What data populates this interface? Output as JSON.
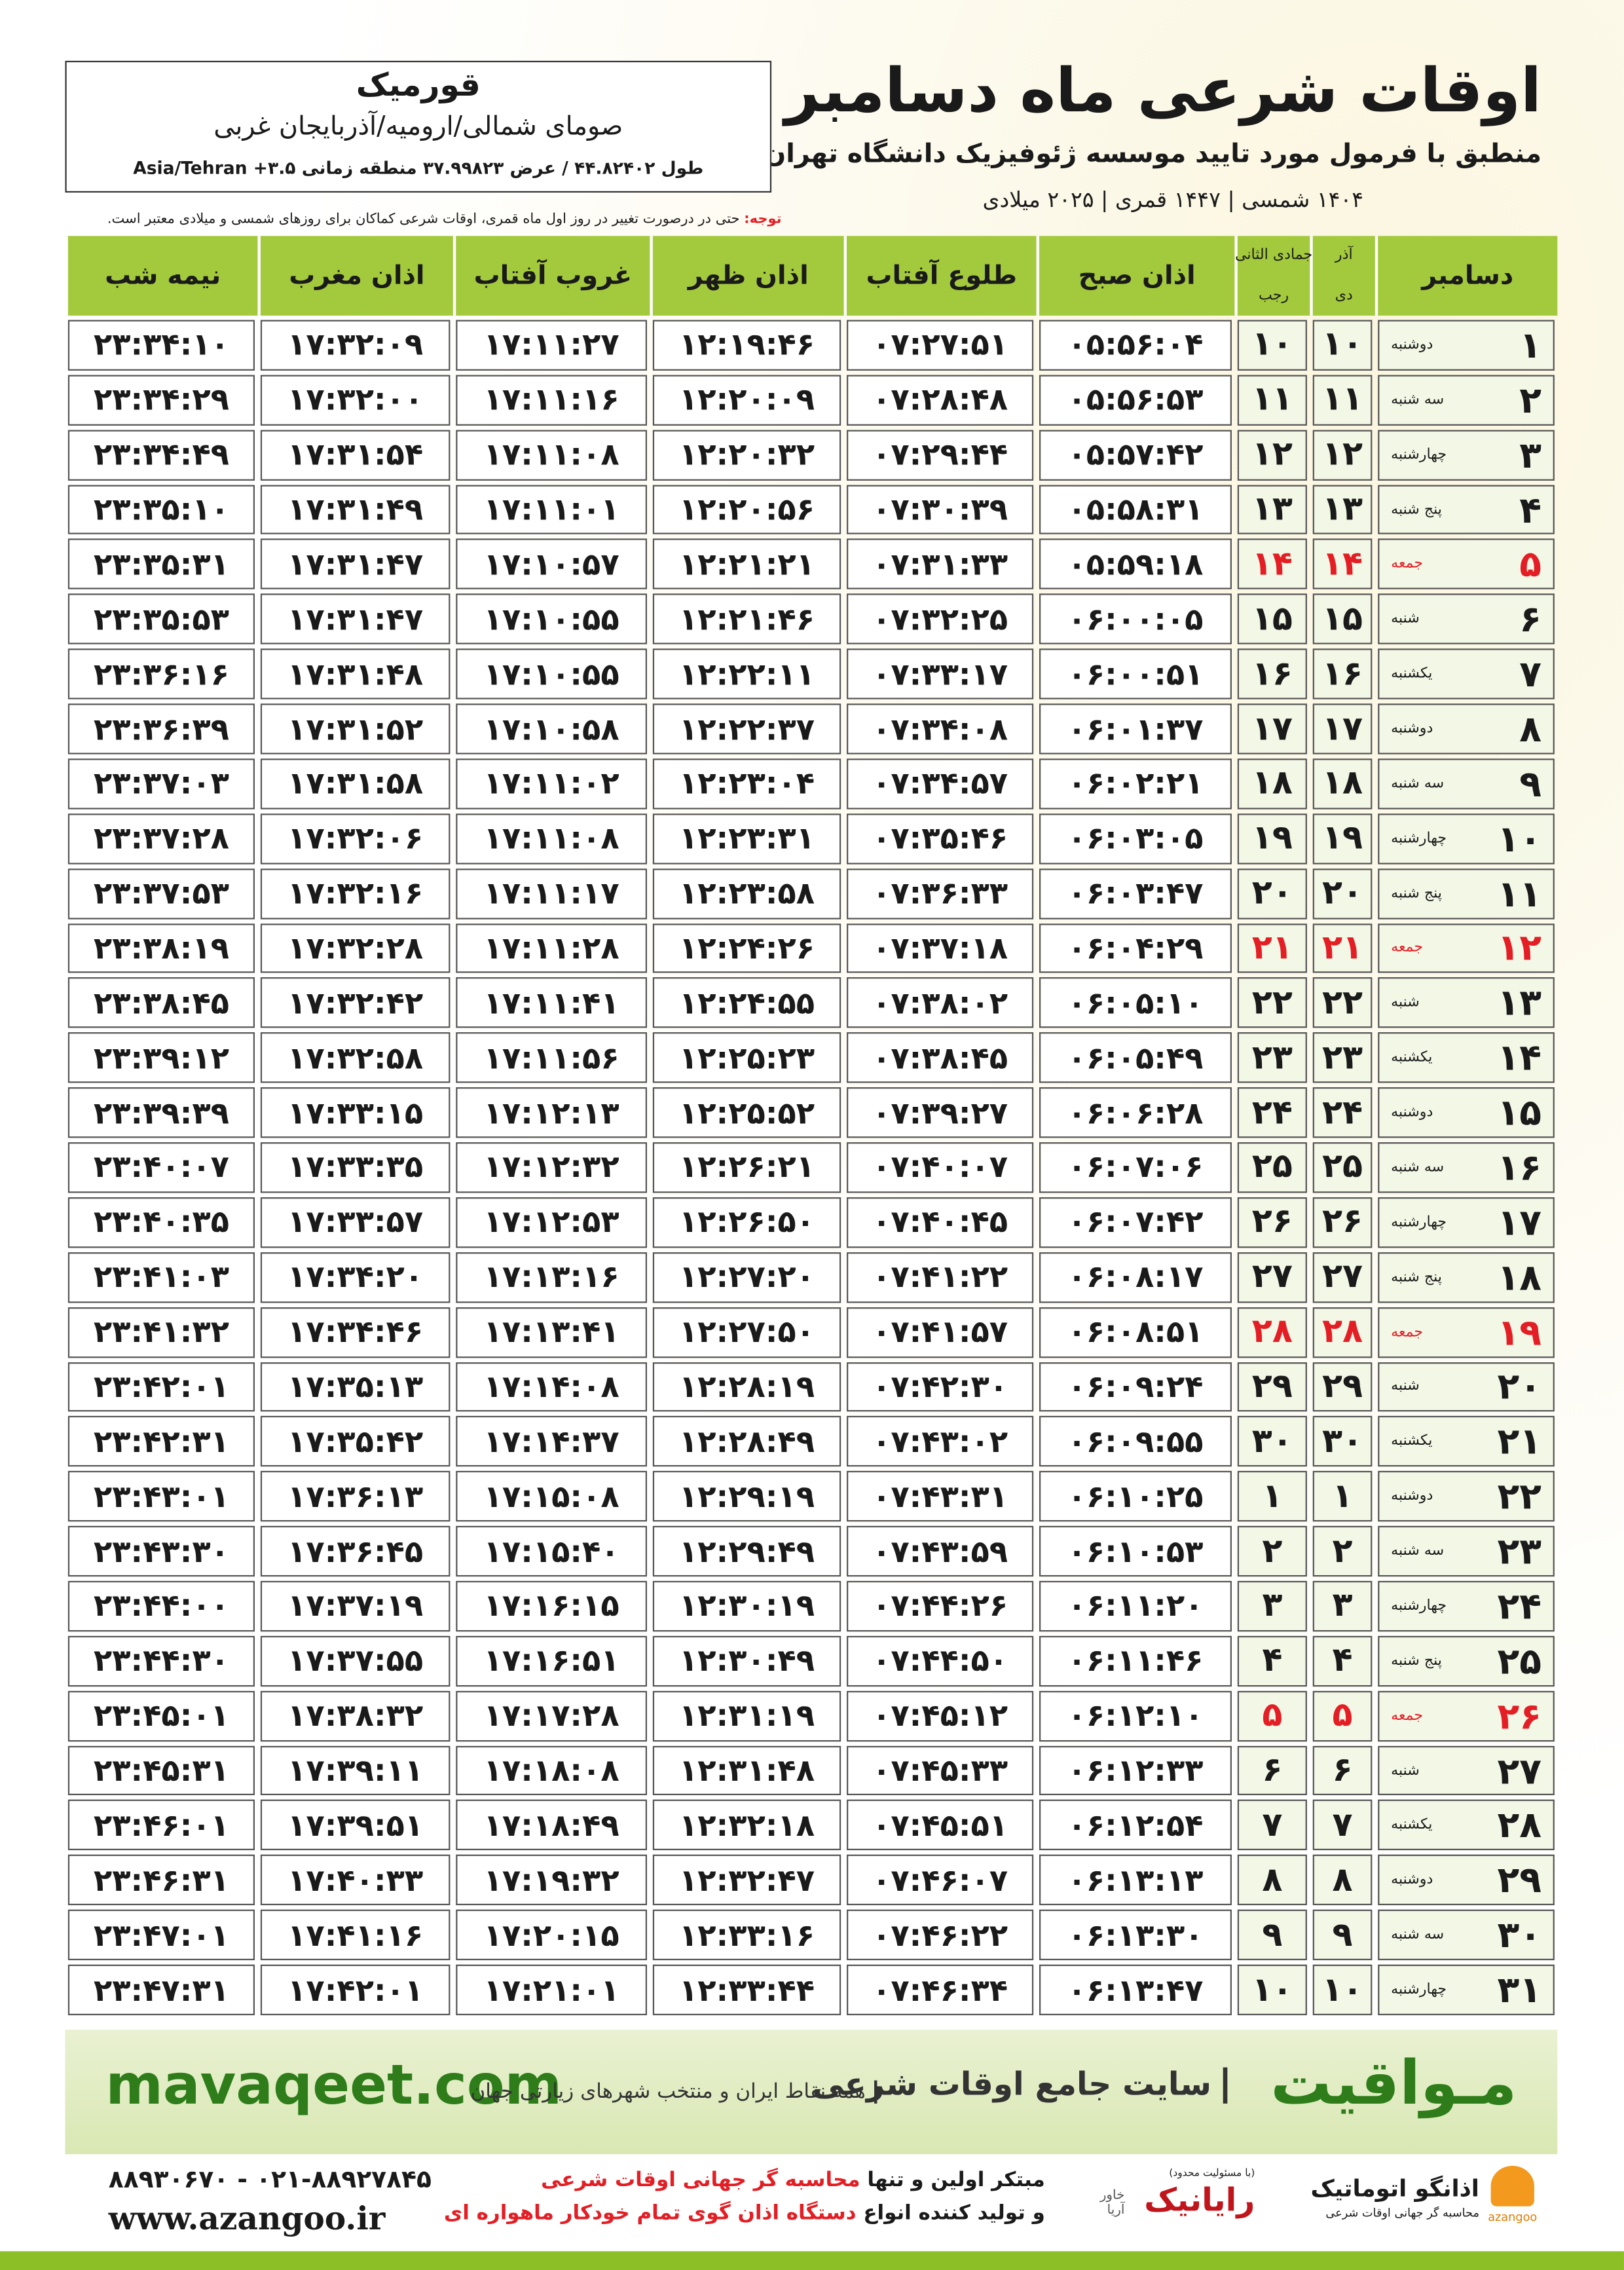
{
  "header": {
    "title": "اوقات شرعی ماه دسامبر",
    "subtitle": "منطبق با فرمول مورد تایید موسسه ژئوفیزیک دانشگاه تهران",
    "dates": "۱۴۰۴ شمسی | ۱۴۴۷ قمری | ۲۰۲۵ میلادی",
    "note_label": "توجه:",
    "note": "حتی در درصورت تغییر در روز اول ماه قمری، اوقات شرعی کماکان برای روزهای شمسی و میلادی معتبر است."
  },
  "location": {
    "city": "قورمیک",
    "region": "صومای شمالی/ارومیه/آذربایجان غربی",
    "coordinates": "طول ۴۴.۸۲۴۰۲ / عرض ۳۷.۹۹۸۲۳ منطقه زمانی ۳.۵+ Asia/Tehran"
  },
  "table": {
    "columns": [
      "دسامبر",
      {
        "top": "آذر",
        "bottom": "دی"
      },
      {
        "top": "جمادی الثانی",
        "bottom": "رجب"
      },
      "اذان صبح",
      "طلوع آفتاب",
      "اذان ظهر",
      "غروب آفتاب",
      "اذان مغرب",
      "نیمه شب"
    ],
    "rows": [
      {
        "day": "۱",
        "weekday": "دوشنبه",
        "shamsi": "۱۰",
        "qamari": "۱۰",
        "times": [
          "۰۵:۵۶:۰۴",
          "۰۷:۲۷:۵۱",
          "۱۲:۱۹:۴۶",
          "۱۷:۱۱:۲۷",
          "۱۷:۳۲:۰۹",
          "۲۳:۳۴:۱۰"
        ],
        "color": "#1a1a1a"
      },
      {
        "day": "۲",
        "weekday": "سه شنبه",
        "shamsi": "۱۱",
        "qamari": "۱۱",
        "times": [
          "۰۵:۵۶:۵۳",
          "۰۷:۲۸:۴۸",
          "۱۲:۲۰:۰۹",
          "۱۷:۱۱:۱۶",
          "۱۷:۳۲:۰۰",
          "۲۳:۳۴:۲۹"
        ],
        "color": "#1a1a1a"
      },
      {
        "day": "۳",
        "weekday": "چهارشنبه",
        "shamsi": "۱۲",
        "qamari": "۱۲",
        "times": [
          "۰۵:۵۷:۴۲",
          "۰۷:۲۹:۴۴",
          "۱۲:۲۰:۳۲",
          "۱۷:۱۱:۰۸",
          "۱۷:۳۱:۵۴",
          "۲۳:۳۴:۴۹"
        ],
        "color": "#1a1a1a"
      },
      {
        "day": "۴",
        "weekday": "پنج شنبه",
        "shamsi": "۱۳",
        "qamari": "۱۳",
        "times": [
          "۰۵:۵۸:۳۱",
          "۰۷:۳۰:۳۹",
          "۱۲:۲۰:۵۶",
          "۱۷:۱۱:۰۱",
          "۱۷:۳۱:۴۹",
          "۲۳:۳۵:۱۰"
        ],
        "color": "#1a1a1a"
      },
      {
        "day": "۵",
        "weekday": "جمعه",
        "shamsi": "۱۴",
        "qamari": "۱۴",
        "times": [
          "۰۵:۵۹:۱۸",
          "۰۷:۳۱:۳۳",
          "۱۲:۲۱:۲۱",
          "۱۷:۱۰:۵۷",
          "۱۷:۳۱:۴۷",
          "۲۳:۳۵:۳۱"
        ],
        "color": "#e31e24"
      },
      {
        "day": "۶",
        "weekday": "شنبه",
        "shamsi": "۱۵",
        "qamari": "۱۵",
        "times": [
          "۰۶:۰۰:۰۵",
          "۰۷:۳۲:۲۵",
          "۱۲:۲۱:۴۶",
          "۱۷:۱۰:۵۵",
          "۱۷:۳۱:۴۷",
          "۲۳:۳۵:۵۳"
        ],
        "color": "#1a1a1a"
      },
      {
        "day": "۷",
        "weekday": "یکشنبه",
        "shamsi": "۱۶",
        "qamari": "۱۶",
        "times": [
          "۰۶:۰۰:۵۱",
          "۰۷:۳۳:۱۷",
          "۱۲:۲۲:۱۱",
          "۱۷:۱۰:۵۵",
          "۱۷:۳۱:۴۸",
          "۲۳:۳۶:۱۶"
        ],
        "color": "#1a1a1a"
      },
      {
        "day": "۸",
        "weekday": "دوشنبه",
        "shamsi": "۱۷",
        "qamari": "۱۷",
        "times": [
          "۰۶:۰۱:۳۷",
          "۰۷:۳۴:۰۸",
          "۱۲:۲۲:۳۷",
          "۱۷:۱۰:۵۸",
          "۱۷:۳۱:۵۲",
          "۲۳:۳۶:۳۹"
        ],
        "color": "#1a1a1a"
      },
      {
        "day": "۹",
        "weekday": "سه شنبه",
        "shamsi": "۱۸",
        "qamari": "۱۸",
        "times": [
          "۰۶:۰۲:۲۱",
          "۰۷:۳۴:۵۷",
          "۱۲:۲۳:۰۴",
          "۱۷:۱۱:۰۲",
          "۱۷:۳۱:۵۸",
          "۲۳:۳۷:۰۳"
        ],
        "color": "#1a1a1a"
      },
      {
        "day": "۱۰",
        "weekday": "چهارشنبه",
        "shamsi": "۱۹",
        "qamari": "۱۹",
        "times": [
          "۰۶:۰۳:۰۵",
          "۰۷:۳۵:۴۶",
          "۱۲:۲۳:۳۱",
          "۱۷:۱۱:۰۸",
          "۱۷:۳۲:۰۶",
          "۲۳:۳۷:۲۸"
        ],
        "color": "#1a1a1a"
      },
      {
        "day": "۱۱",
        "weekday": "پنج شنبه",
        "shamsi": "۲۰",
        "qamari": "۲۰",
        "times": [
          "۰۶:۰۳:۴۷",
          "۰۷:۳۶:۳۳",
          "۱۲:۲۳:۵۸",
          "۱۷:۱۱:۱۷",
          "۱۷:۳۲:۱۶",
          "۲۳:۳۷:۵۳"
        ],
        "color": "#1a1a1a"
      },
      {
        "day": "۱۲",
        "weekday": "جمعه",
        "shamsi": "۲۱",
        "qamari": "۲۱",
        "times": [
          "۰۶:۰۴:۲۹",
          "۰۷:۳۷:۱۸",
          "۱۲:۲۴:۲۶",
          "۱۷:۱۱:۲۸",
          "۱۷:۳۲:۲۸",
          "۲۳:۳۸:۱۹"
        ],
        "color": "#e31e24"
      },
      {
        "day": "۱۳",
        "weekday": "شنبه",
        "shamsi": "۲۲",
        "qamari": "۲۲",
        "times": [
          "۰۶:۰۵:۱۰",
          "۰۷:۳۸:۰۲",
          "۱۲:۲۴:۵۵",
          "۱۷:۱۱:۴۱",
          "۱۷:۳۲:۴۲",
          "۲۳:۳۸:۴۵"
        ],
        "color": "#1a1a1a"
      },
      {
        "day": "۱۴",
        "weekday": "یکشنبه",
        "shamsi": "۲۳",
        "qamari": "۲۳",
        "times": [
          "۰۶:۰۵:۴۹",
          "۰۷:۳۸:۴۵",
          "۱۲:۲۵:۲۳",
          "۱۷:۱۱:۵۶",
          "۱۷:۳۲:۵۸",
          "۲۳:۳۹:۱۲"
        ],
        "color": "#1a1a1a"
      },
      {
        "day": "۱۵",
        "weekday": "دوشنبه",
        "shamsi": "۲۴",
        "qamari": "۲۴",
        "times": [
          "۰۶:۰۶:۲۸",
          "۰۷:۳۹:۲۷",
          "۱۲:۲۵:۵۲",
          "۱۷:۱۲:۱۳",
          "۱۷:۳۳:۱۵",
          "۲۳:۳۹:۳۹"
        ],
        "color": "#1a1a1a"
      },
      {
        "day": "۱۶",
        "weekday": "سه شنبه",
        "shamsi": "۲۵",
        "qamari": "۲۵",
        "times": [
          "۰۶:۰۷:۰۶",
          "۰۷:۴۰:۰۷",
          "۱۲:۲۶:۲۱",
          "۱۷:۱۲:۳۲",
          "۱۷:۳۳:۳۵",
          "۲۳:۴۰:۰۷"
        ],
        "color": "#1a1a1a"
      },
      {
        "day": "۱۷",
        "weekday": "چهارشنبه",
        "shamsi": "۲۶",
        "qamari": "۲۶",
        "times": [
          "۰۶:۰۷:۴۲",
          "۰۷:۴۰:۴۵",
          "۱۲:۲۶:۵۰",
          "۱۷:۱۲:۵۳",
          "۱۷:۳۳:۵۷",
          "۲۳:۴۰:۳۵"
        ],
        "color": "#1a1a1a"
      },
      {
        "day": "۱۸",
        "weekday": "پنج شنبه",
        "shamsi": "۲۷",
        "qamari": "۲۷",
        "times": [
          "۰۶:۰۸:۱۷",
          "۰۷:۴۱:۲۲",
          "۱۲:۲۷:۲۰",
          "۱۷:۱۳:۱۶",
          "۱۷:۳۴:۲۰",
          "۲۳:۴۱:۰۳"
        ],
        "color": "#1a1a1a"
      },
      {
        "day": "۱۹",
        "weekday": "جمعه",
        "shamsi": "۲۸",
        "qamari": "۲۸",
        "times": [
          "۰۶:۰۸:۵۱",
          "۰۷:۴۱:۵۷",
          "۱۲:۲۷:۵۰",
          "۱۷:۱۳:۴۱",
          "۱۷:۳۴:۴۶",
          "۲۳:۴۱:۳۲"
        ],
        "color": "#e31e24"
      },
      {
        "day": "۲۰",
        "weekday": "شنبه",
        "shamsi": "۲۹",
        "qamari": "۲۹",
        "times": [
          "۰۶:۰۹:۲۴",
          "۰۷:۴۲:۳۰",
          "۱۲:۲۸:۱۹",
          "۱۷:۱۴:۰۸",
          "۱۷:۳۵:۱۳",
          "۲۳:۴۲:۰۱"
        ],
        "color": "#1a1a1a"
      },
      {
        "day": "۲۱",
        "weekday": "یکشنبه",
        "shamsi": "۳۰",
        "qamari": "۳۰",
        "times": [
          "۰۶:۰۹:۵۵",
          "۰۷:۴۳:۰۲",
          "۱۲:۲۸:۴۹",
          "۱۷:۱۴:۳۷",
          "۱۷:۳۵:۴۲",
          "۲۳:۴۲:۳۱"
        ],
        "color": "#1a1a1a"
      },
      {
        "day": "۲۲",
        "weekday": "دوشنبه",
        "shamsi": "۱",
        "qamari": "۱",
        "times": [
          "۰۶:۱۰:۲۵",
          "۰۷:۴۳:۳۱",
          "۱۲:۲۹:۱۹",
          "۱۷:۱۵:۰۸",
          "۱۷:۳۶:۱۳",
          "۲۳:۴۳:۰۱"
        ],
        "color": "#1a1a1a"
      },
      {
        "day": "۲۳",
        "weekday": "سه شنبه",
        "shamsi": "۲",
        "qamari": "۲",
        "times": [
          "۰۶:۱۰:۵۳",
          "۰۷:۴۳:۵۹",
          "۱۲:۲۹:۴۹",
          "۱۷:۱۵:۴۰",
          "۱۷:۳۶:۴۵",
          "۲۳:۴۳:۳۰"
        ],
        "color": "#1a1a1a"
      },
      {
        "day": "۲۴",
        "weekday": "چهارشنبه",
        "shamsi": "۳",
        "qamari": "۳",
        "times": [
          "۰۶:۱۱:۲۰",
          "۰۷:۴۴:۲۶",
          "۱۲:۳۰:۱۹",
          "۱۷:۱۶:۱۵",
          "۱۷:۳۷:۱۹",
          "۲۳:۴۴:۰۰"
        ],
        "color": "#1a1a1a"
      },
      {
        "day": "۲۵",
        "weekday": "پنج شنبه",
        "shamsi": "۴",
        "qamari": "۴",
        "times": [
          "۰۶:۱۱:۴۶",
          "۰۷:۴۴:۵۰",
          "۱۲:۳۰:۴۹",
          "۱۷:۱۶:۵۱",
          "۱۷:۳۷:۵۵",
          "۲۳:۴۴:۳۰"
        ],
        "color": "#1a1a1a"
      },
      {
        "day": "۲۶",
        "weekday": "جمعه",
        "shamsi": "۵",
        "qamari": "۵",
        "times": [
          "۰۶:۱۲:۱۰",
          "۰۷:۴۵:۱۲",
          "۱۲:۳۱:۱۹",
          "۱۷:۱۷:۲۸",
          "۱۷:۳۸:۳۲",
          "۲۳:۴۵:۰۱"
        ],
        "color": "#e31e24"
      },
      {
        "day": "۲۷",
        "weekday": "شنبه",
        "shamsi": "۶",
        "qamari": "۶",
        "times": [
          "۰۶:۱۲:۳۳",
          "۰۷:۴۵:۳۳",
          "۱۲:۳۱:۴۸",
          "۱۷:۱۸:۰۸",
          "۱۷:۳۹:۱۱",
          "۲۳:۴۵:۳۱"
        ],
        "color": "#1a1a1a"
      },
      {
        "day": "۲۸",
        "weekday": "یکشنبه",
        "shamsi": "۷",
        "qamari": "۷",
        "times": [
          "۰۶:۱۲:۵۴",
          "۰۷:۴۵:۵۱",
          "۱۲:۳۲:۱۸",
          "۱۷:۱۸:۴۹",
          "۱۷:۳۹:۵۱",
          "۲۳:۴۶:۰۱"
        ],
        "color": "#1a1a1a"
      },
      {
        "day": "۲۹",
        "weekday": "دوشنبه",
        "shamsi": "۸",
        "qamari": "۸",
        "times": [
          "۰۶:۱۳:۱۳",
          "۰۷:۴۶:۰۷",
          "۱۲:۳۲:۴۷",
          "۱۷:۱۹:۳۲",
          "۱۷:۴۰:۳۳",
          "۲۳:۴۶:۳۱"
        ],
        "color": "#1a1a1a"
      },
      {
        "day": "۳۰",
        "weekday": "سه شنبه",
        "shamsi": "۹",
        "qamari": "۹",
        "times": [
          "۰۶:۱۳:۳۰",
          "۰۷:۴۶:۲۲",
          "۱۲:۳۳:۱۶",
          "۱۷:۲۰:۱۵",
          "۱۷:۴۱:۱۶",
          "۲۳:۴۷:۰۱"
        ],
        "color": "#1a1a1a"
      },
      {
        "day": "۳۱",
        "weekday": "چهارشنبه",
        "shamsi": "۱۰",
        "qamari": "۱۰",
        "times": [
          "۰۶:۱۳:۴۷",
          "۰۷:۴۶:۳۴",
          "۱۲:۳۳:۴۴",
          "۱۷:۲۱:۰۱",
          "۱۷:۴۲:۰۱",
          "۲۳:۴۷:۳۱"
        ],
        "color": "#1a1a1a"
      }
    ]
  },
  "footer": {
    "site": "mavaqeet.com",
    "brand": "مـواقیت",
    "slogan": "سایت جامع اوقات شرعی",
    "coverage": "همه نقاط ایران و منتخب شهرهای زیارتی جهان"
  },
  "contact": {
    "phones": "۰۲۱-۸۸۹۲۷۸۴۵ - ۸۸۹۳۰۶۷۰",
    "website": "www.azangoo.ir",
    "line1_a": "مبتکر اولین و تنها",
    "line1_b": "محاسبه گر جهانی اوقات شرعی",
    "line2_a": "و تولید کننده انواع",
    "line2_b": "دستگاه اذان گوی تمام خودکار ماهواره ای"
  },
  "logos": {
    "rayanik": "رایانیک",
    "rayanik_note": "(با مسئولیت محدود)",
    "khavar": "خاور آریا",
    "azangoo": "اذانگو اتوماتیک",
    "azangoo_tag": "محاسبه گر جهانی اوقات شرعی",
    "azangoo_latin": "azangoo"
  }
}
